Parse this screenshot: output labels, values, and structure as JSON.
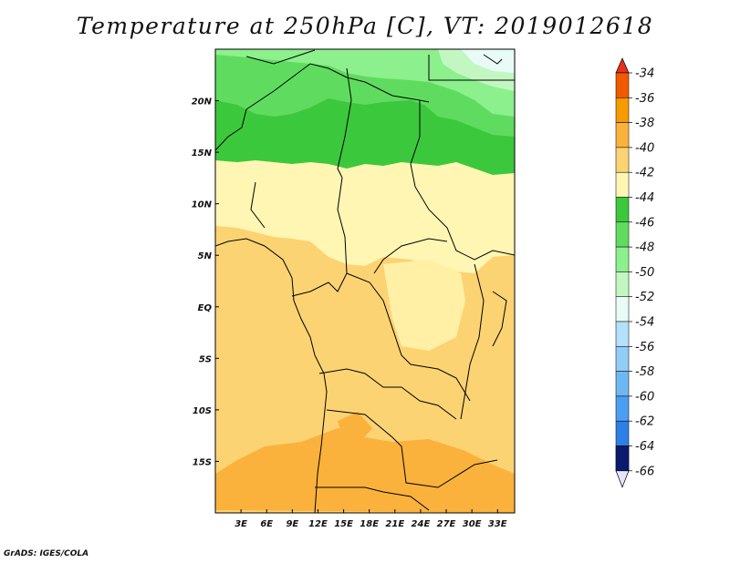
{
  "title": "Temperature at 250hPa [C], VT: 2019012618",
  "credit": "GrADS: IGES/COLA",
  "map": {
    "projection": "lat-lon",
    "lon_range": [
      0,
      35
    ],
    "lat_range": [
      -20,
      25
    ],
    "lon_ticks": [
      {
        "value": 3,
        "label": "3E"
      },
      {
        "value": 6,
        "label": "6E"
      },
      {
        "value": 9,
        "label": "9E"
      },
      {
        "value": 12,
        "label": "12E"
      },
      {
        "value": 15,
        "label": "15E"
      },
      {
        "value": 18,
        "label": "18E"
      },
      {
        "value": 21,
        "label": "21E"
      },
      {
        "value": 24,
        "label": "24E"
      },
      {
        "value": 27,
        "label": "27E"
      },
      {
        "value": 30,
        "label": "30E"
      },
      {
        "value": 33,
        "label": "33E"
      }
    ],
    "lat_ticks": [
      {
        "value": 20,
        "label": "20N"
      },
      {
        "value": 15,
        "label": "15N"
      },
      {
        "value": 10,
        "label": "10N"
      },
      {
        "value": 5,
        "label": "5N"
      },
      {
        "value": 0,
        "label": "EQ"
      },
      {
        "value": -5,
        "label": "5S"
      },
      {
        "value": -10,
        "label": "10S"
      },
      {
        "value": -15,
        "label": "15S"
      }
    ]
  },
  "colorbar": {
    "levels": [
      {
        "label": "-34",
        "color": "#f05a00"
      },
      {
        "label": "-36",
        "color": "#f59a00"
      },
      {
        "label": "-38",
        "color": "#fbb23c"
      },
      {
        "label": "-40",
        "color": "#fcd373"
      },
      {
        "label": "-42",
        "color": "#fff6b3"
      },
      {
        "label": "-44",
        "color": "#3cc83c"
      },
      {
        "label": "-46",
        "color": "#5fdc5f"
      },
      {
        "label": "-48",
        "color": "#8cf08c"
      },
      {
        "label": "-50",
        "color": "#c2f7c2"
      },
      {
        "label": "-52",
        "color": "#e8fbf6"
      },
      {
        "label": "-54",
        "color": "#b3e0fa"
      },
      {
        "label": "-56",
        "color": "#92cdf7"
      },
      {
        "label": "-58",
        "color": "#6eb8f2"
      },
      {
        "label": "-60",
        "color": "#4b9ff0"
      },
      {
        "label": "-62",
        "color": "#2f80e6"
      },
      {
        "label": "-64",
        "color": "#1e62cf"
      },
      {
        "label": "-66",
        "color": "#1148b4"
      }
    ],
    "top_arrow_color": "#e8301e",
    "bottom_arrow_color": "#e4e4fa",
    "bottom_cell_color": "#0a1a6e"
  }
}
